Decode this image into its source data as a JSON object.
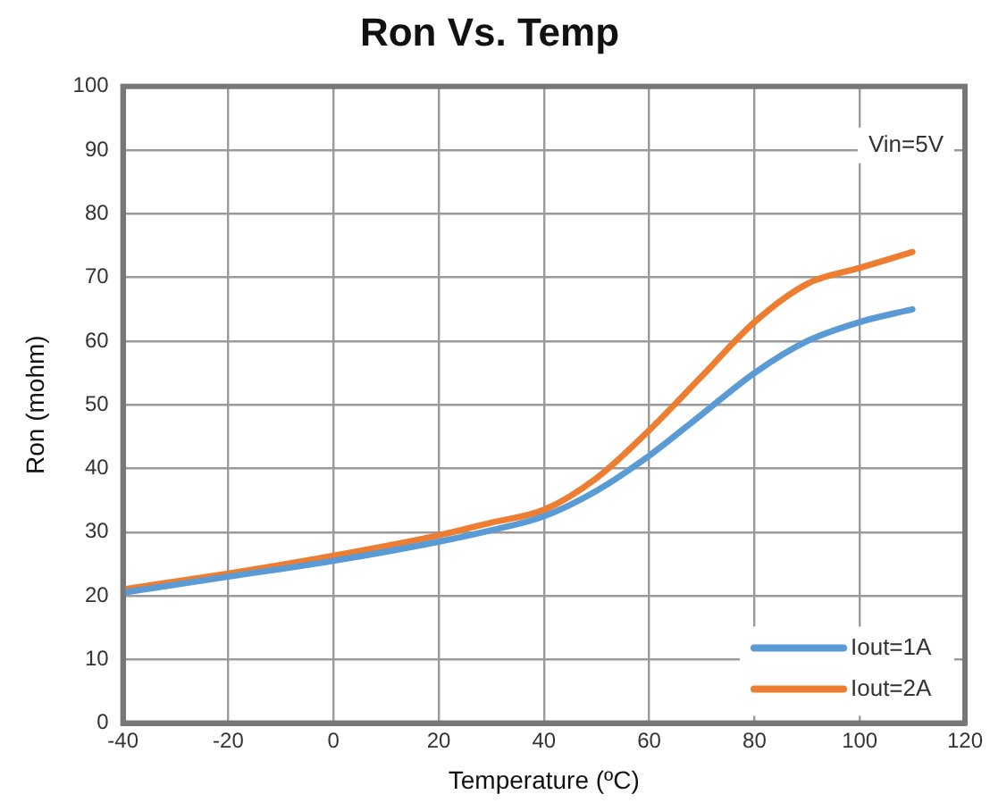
{
  "chart_data": {
    "type": "line",
    "title": "Ron Vs. Temp",
    "xlabel": "Temperature (ºC)",
    "ylabel": "Ron (mohm)",
    "x": [
      -40,
      -20,
      0,
      20,
      30,
      40,
      50,
      60,
      70,
      80,
      90,
      100,
      110
    ],
    "series": [
      {
        "name": "Iout=1A",
        "color": "#5b9bd5",
        "values": [
          20.5,
          23,
          25.5,
          28.5,
          30.3,
          32.5,
          36.5,
          42,
          48.5,
          55,
          60,
          63,
          65
        ]
      },
      {
        "name": "Iout=2A",
        "color": "#ed7d31",
        "values": [
          21,
          23.5,
          26.3,
          29.5,
          31.5,
          33.5,
          38.5,
          46,
          54.5,
          63,
          69,
          71.5,
          74
        ]
      }
    ],
    "xlim": [
      -40,
      120
    ],
    "xticks": [
      -40,
      -20,
      0,
      20,
      40,
      60,
      80,
      100,
      120
    ],
    "ylim": [
      0,
      100
    ],
    "yticks": [
      0,
      10,
      20,
      30,
      40,
      50,
      60,
      70,
      80,
      90,
      100
    ],
    "annotations": [
      "Vin=5V"
    ],
    "grid": true,
    "legend": "bottom right",
    "marker": "none",
    "line_style": "solid"
  }
}
